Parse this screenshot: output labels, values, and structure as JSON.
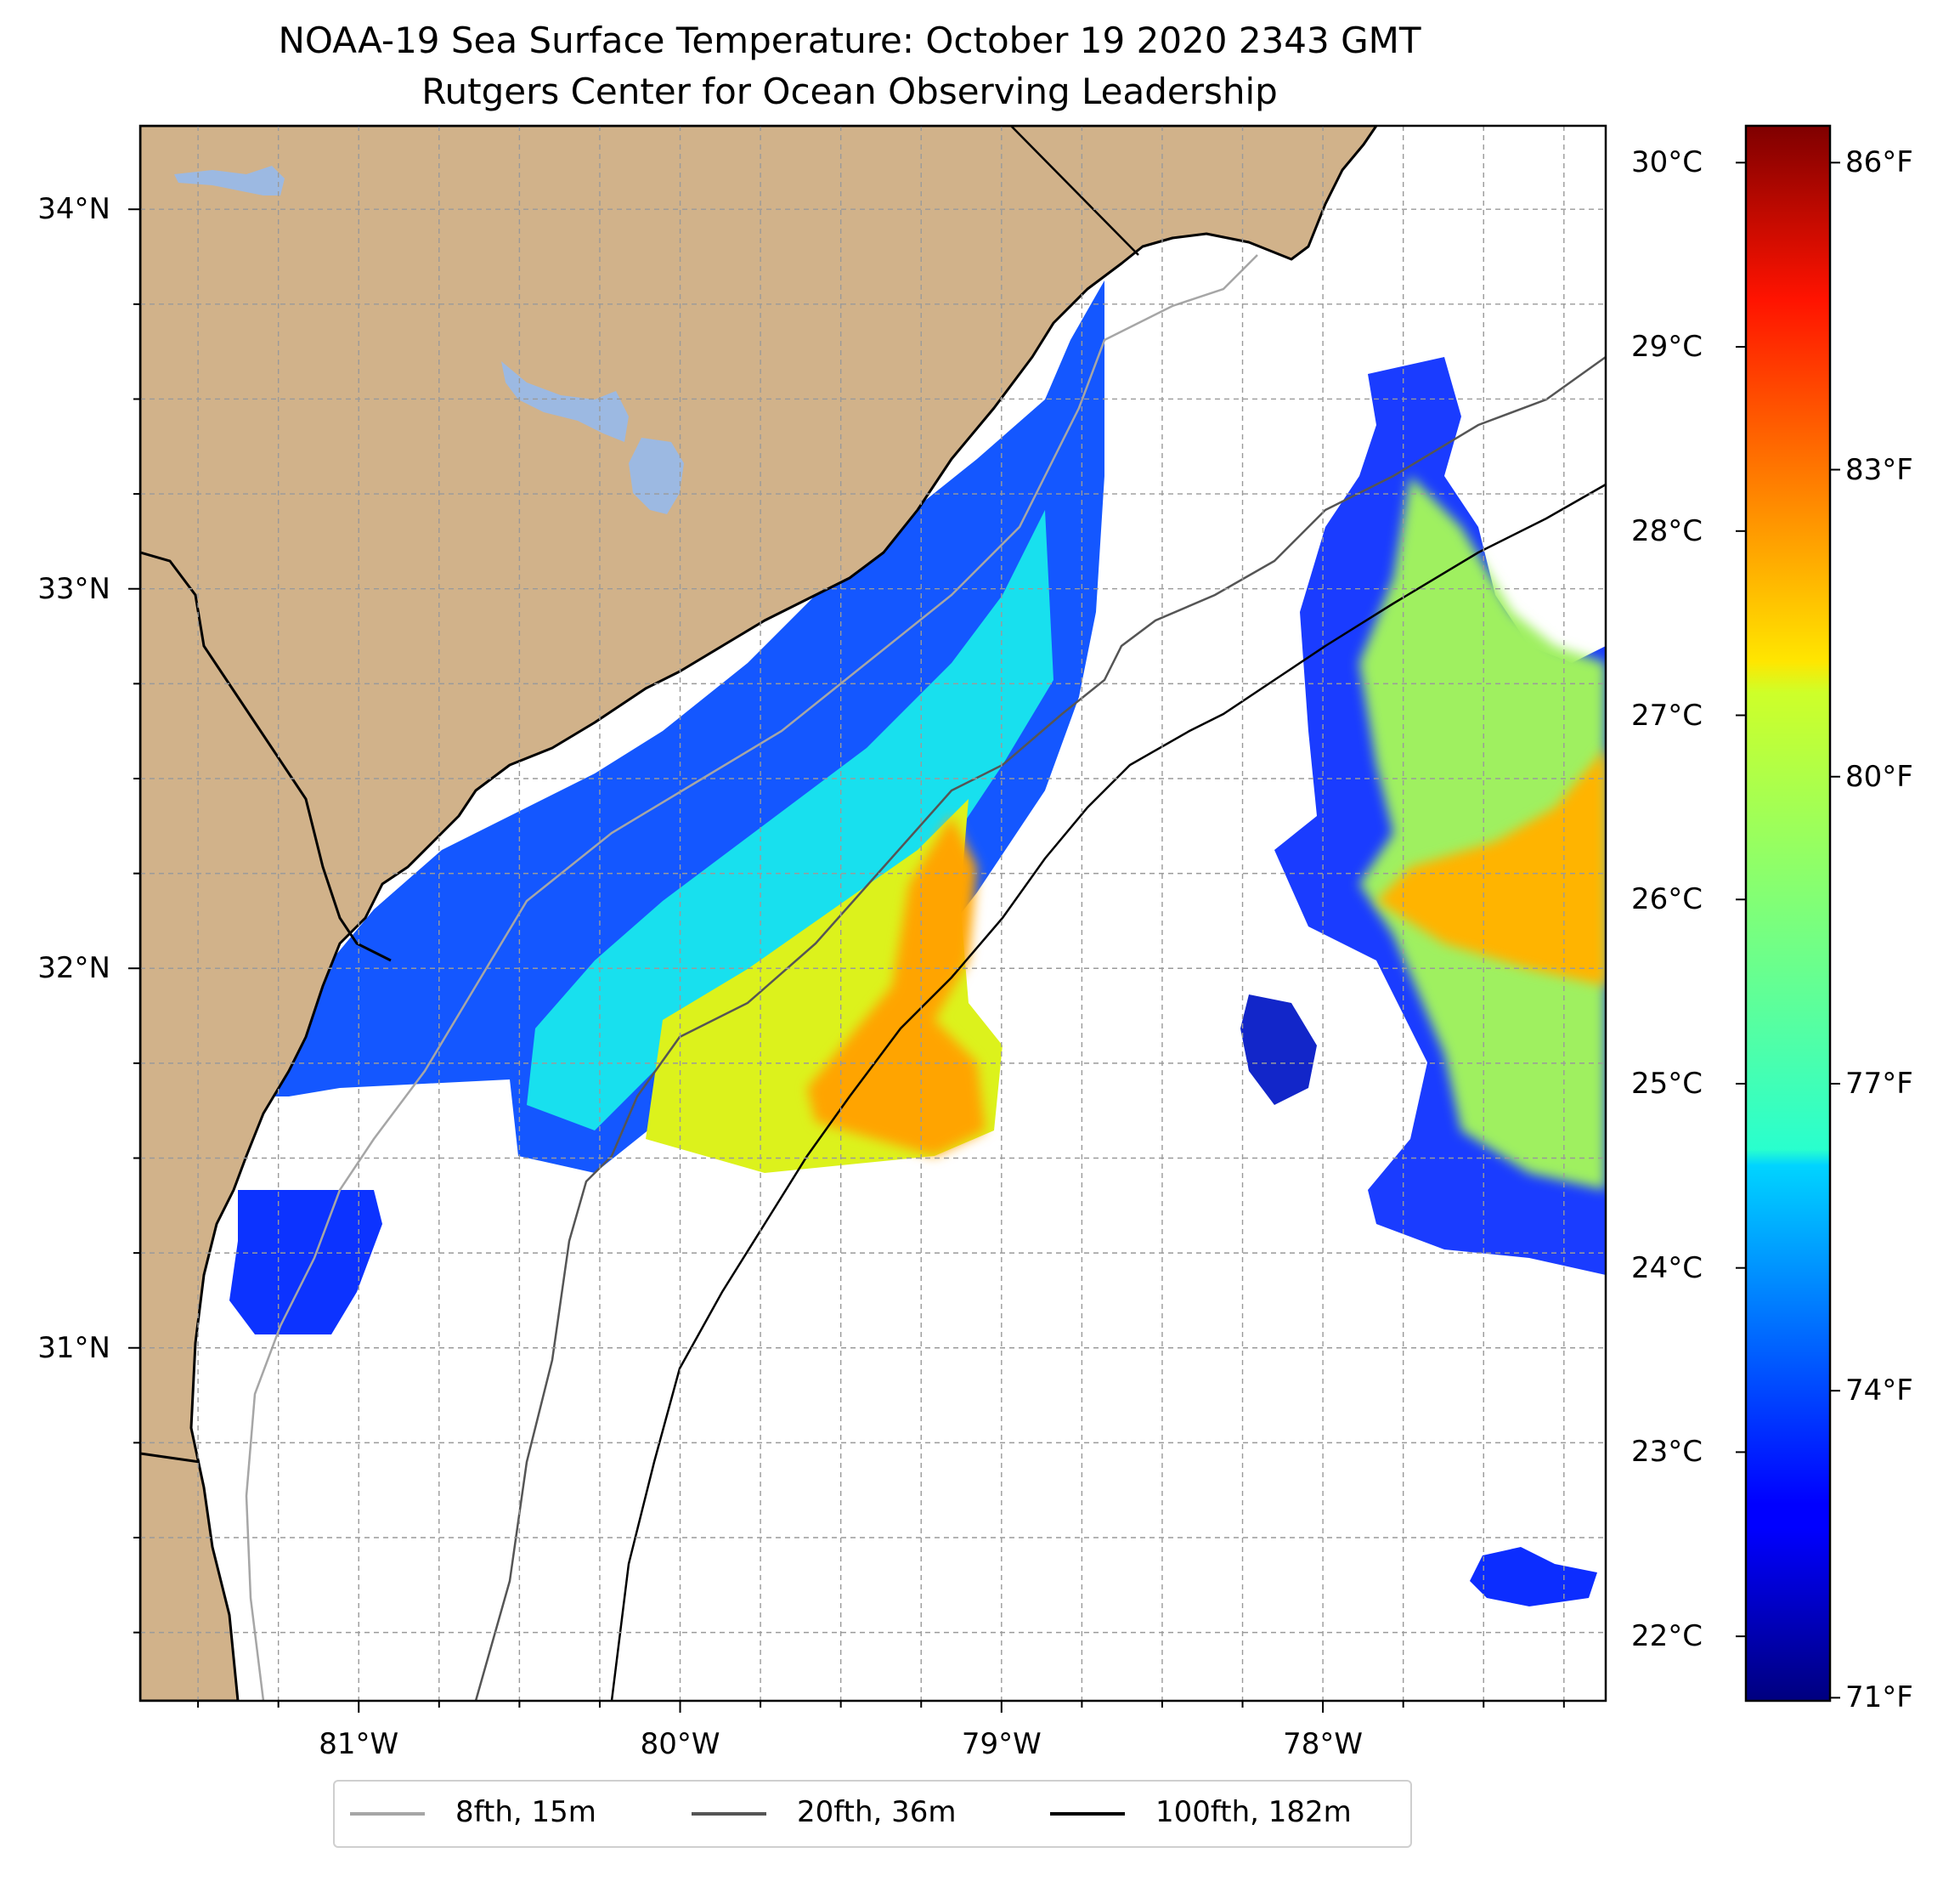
{
  "title": "NOAA-19 Sea Surface Temperature: October 19 2020 2343 GMT",
  "subtitle": "Rutgers Center for Ocean Observing Leadership",
  "map": {
    "extent": {
      "lon_min": -81.68,
      "lon_max": -77.12,
      "lat_min": 30.07,
      "lat_max": 34.22
    },
    "lat_ticks": [
      {
        "value": 34,
        "label": "34°N"
      },
      {
        "value": 33,
        "label": "33°N"
      },
      {
        "value": 32,
        "label": "32°N"
      },
      {
        "value": 31,
        "label": "31°N"
      }
    ],
    "lon_ticks": [
      {
        "value": -81,
        "label": "81°W"
      },
      {
        "value": -80,
        "label": "80°W"
      },
      {
        "value": -79,
        "label": "79°W"
      },
      {
        "value": -78,
        "label": "78°W"
      }
    ],
    "gridlines": "dashed",
    "colors": {
      "land": "#d1b28a",
      "lake": "#9cb9e2",
      "ocean_nodata": "#ffffff"
    }
  },
  "colorbar": {
    "colormap": "jet",
    "range_c": [
      21.65,
      30.2
    ],
    "celsius_ticks": [
      {
        "value": 22,
        "label": "22°C"
      },
      {
        "value": 23,
        "label": "23°C"
      },
      {
        "value": 24,
        "label": "24°C"
      },
      {
        "value": 25,
        "label": "25°C"
      },
      {
        "value": 26,
        "label": "26°C"
      },
      {
        "value": 27,
        "label": "27°C"
      },
      {
        "value": 28,
        "label": "28°C"
      },
      {
        "value": 29,
        "label": "29°C"
      },
      {
        "value": 30,
        "label": "30°C"
      }
    ],
    "fahrenheit_ticks": [
      {
        "value": 71,
        "label": "71°F"
      },
      {
        "value": 74,
        "label": "74°F"
      },
      {
        "value": 77,
        "label": "77°F"
      },
      {
        "value": 80,
        "label": "80°F"
      },
      {
        "value": 83,
        "label": "83°F"
      },
      {
        "value": 86,
        "label": "86°F"
      }
    ]
  },
  "legend": {
    "items": [
      {
        "label": "8fth, 15m",
        "color": "#a6a6a6"
      },
      {
        "label": "20fth, 36m",
        "color": "#555555"
      },
      {
        "label": "100fth, 182m",
        "color": "#000000"
      }
    ]
  }
}
